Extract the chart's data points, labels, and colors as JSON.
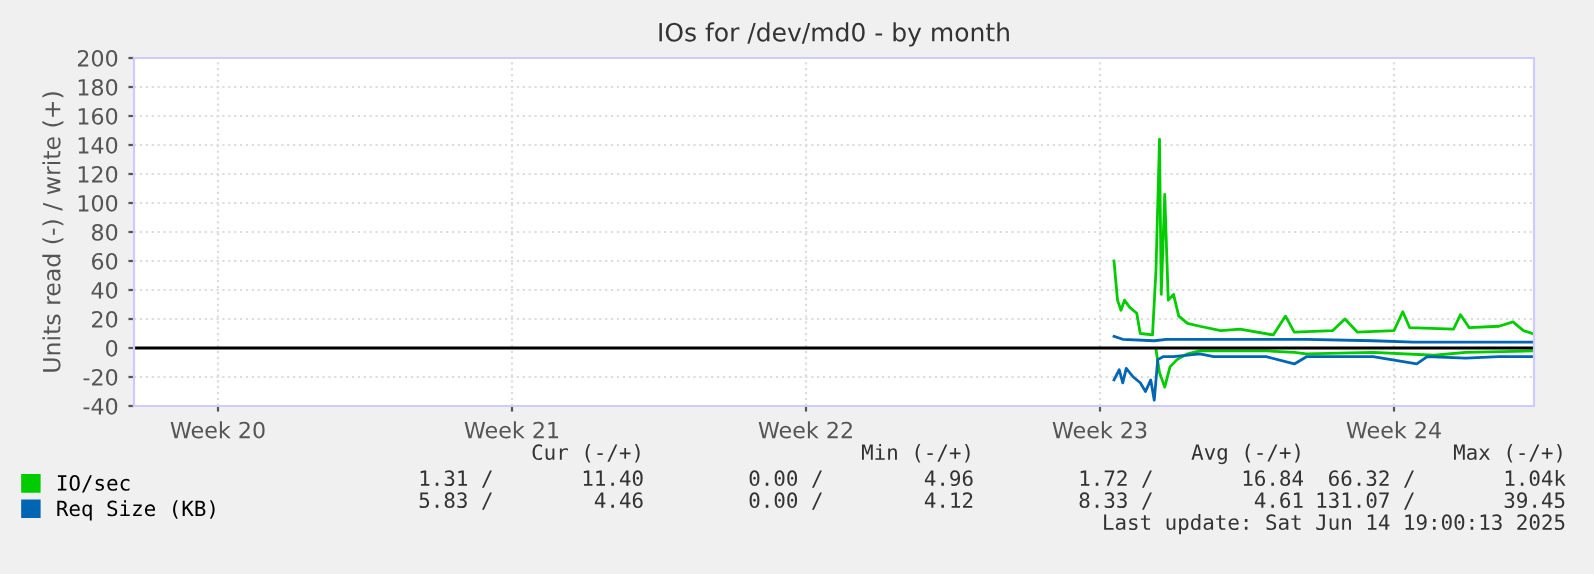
{
  "chart_data": {
    "type": "line",
    "title": "IOs for /dev/md0 - by month",
    "ylabel": "Units read (-) / write (+)",
    "xlim": [
      "2025-05-12T11:00",
      "2025-06-14T19:00"
    ],
    "xticks": [
      {
        "value": "2025-05-14T11:00",
        "label": "Week 20"
      },
      {
        "value": "2025-05-21T11:00",
        "label": "Week 21"
      },
      {
        "value": "2025-05-28T11:00",
        "label": "Week 22"
      },
      {
        "value": "2025-06-04T11:00",
        "label": "Week 23"
      },
      {
        "value": "2025-06-11T11:00",
        "label": "Week 24"
      }
    ],
    "ylim": [
      -40,
      200
    ],
    "yticks": [
      -40,
      -20,
      0,
      20,
      40,
      60,
      80,
      100,
      120,
      140,
      160,
      180,
      200
    ],
    "grid": true,
    "legend": "bottom left",
    "ref_lines": [
      {
        "axis": "y",
        "value": 0,
        "color": "#000000"
      }
    ],
    "series": [
      {
        "name": "IO/sec",
        "color": "#00cc00",
        "x": [
          "2025-06-04T19:00",
          "2025-06-04T21:00",
          "2025-06-04T23:00",
          "2025-06-05T01:00",
          "2025-06-05T04:00",
          "2025-06-05T08:00",
          "2025-06-05T10:00",
          "2025-06-05T17:00",
          "2025-06-05T19:00",
          "2025-06-05T21:00",
          "2025-06-05T22:00",
          "2025-06-06T00:00",
          "2025-06-06T02:00",
          "2025-06-06T05:00",
          "2025-06-06T08:00",
          "2025-06-06T13:00",
          "2025-06-06T20:00",
          "2025-06-07T08:00",
          "2025-06-07T19:00",
          "2025-06-08T14:00",
          "2025-06-08T21:00",
          "2025-06-09T02:00",
          "2025-06-10T00:00",
          "2025-06-10T07:00",
          "2025-06-10T14:00",
          "2025-06-11T11:00",
          "2025-06-11T16:00",
          "2025-06-11T20:00",
          "2025-06-12T21:00",
          "2025-06-13T01:00",
          "2025-06-13T06:00",
          "2025-06-13T23:00",
          "2025-06-14T07:00",
          "2025-06-14T13:00",
          "2025-06-14T18:00"
        ],
        "values": [
          60,
          33,
          26,
          33,
          28,
          24,
          10,
          9,
          54,
          144,
          37,
          106,
          33,
          37,
          22,
          17,
          15,
          12,
          13,
          9,
          22,
          11,
          12,
          20,
          11,
          12,
          25,
          14,
          13,
          23,
          14,
          15,
          18,
          12,
          10
        ]
      },
      {
        "color": "#00cc00",
        "x": [
          "2025-06-05T19:00",
          "2025-06-05T21:00",
          "2025-06-06T00:00",
          "2025-06-06T03:00",
          "2025-06-06T07:00",
          "2025-06-06T13:00",
          "2025-06-06T20:00",
          "2025-06-08T10:00",
          "2025-06-09T02:00",
          "2025-06-09T09:00",
          "2025-06-10T23:00",
          "2025-06-12T10:00",
          "2025-06-13T04:00",
          "2025-06-14T18:00"
        ],
        "values": [
          -1,
          -17,
          -27,
          -13,
          -8,
          -4,
          -2,
          -2,
          -3,
          -4,
          -3,
          -5,
          -3,
          -2
        ]
      },
      {
        "name": "Req Size (KB)",
        "color": "#0066b3",
        "x": [
          "2025-06-04T19:00",
          "2025-06-05T00:00",
          "2025-06-05T18:00",
          "2025-06-06T01:00",
          "2025-06-06T20:00",
          "2025-06-07T19:00",
          "2025-06-09T09:00",
          "2025-06-10T23:00",
          "2025-06-11T22:00",
          "2025-06-13T20:00",
          "2025-06-14T18:00"
        ],
        "values": [
          8,
          6,
          5,
          6,
          6,
          6,
          6,
          5,
          4,
          4,
          4
        ]
      },
      {
        "color": "#0066b3",
        "x": [
          "2025-06-04T19:00",
          "2025-06-04T22:00",
          "2025-06-05T00:00",
          "2025-06-05T02:00",
          "2025-06-05T06:00",
          "2025-06-05T10:00",
          "2025-06-05T13:00",
          "2025-06-05T16:00",
          "2025-06-05T18:00",
          "2025-06-05T20:00",
          "2025-06-05T23:00",
          "2025-06-06T05:00",
          "2025-06-06T20:00",
          "2025-06-07T04:00",
          "2025-06-08T10:00",
          "2025-06-09T02:00",
          "2025-06-09T09:00",
          "2025-06-10T23:00",
          "2025-06-12T00:00",
          "2025-06-12T06:00",
          "2025-06-13T04:00",
          "2025-06-13T23:00",
          "2025-06-14T18:00"
        ],
        "values": [
          -22,
          -15,
          -24,
          -14,
          -20,
          -24,
          -30,
          -22,
          -36,
          -8,
          -6,
          -6,
          -4,
          -6,
          -6,
          -11,
          -6,
          -6,
          -11,
          -6,
          -7,
          -6,
          -6
        ]
      }
    ],
    "annotations": [
      "Cur (-/+)",
      "Min (-/+)",
      "Avg (-/+)",
      "Max (-/+)",
      "1.31 /       11.40",
      "0.00 /        4.96",
      "1.72 /       16.84",
      "66.32 /       1.04k",
      "5.83 /        4.46",
      "0.00 /        4.12",
      "8.33 /        4.61",
      "131.07 /       39.45",
      "Last update: Sat Jun 14 19:00:13 2025"
    ]
  }
}
